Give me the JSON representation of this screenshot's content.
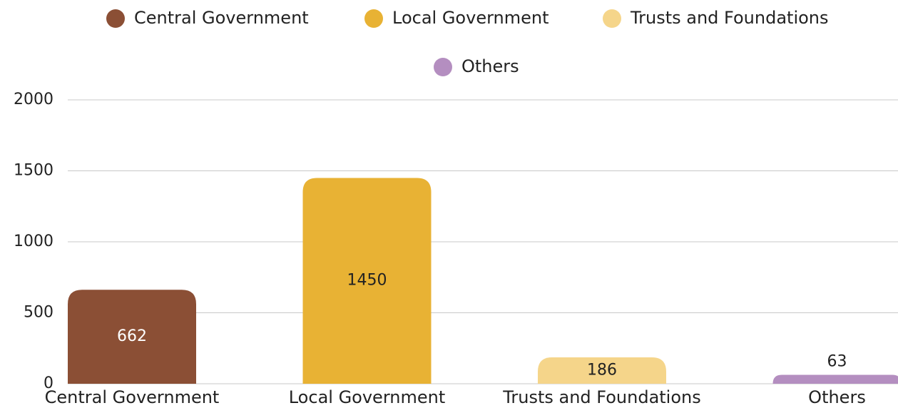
{
  "chart_data": {
    "type": "bar",
    "categories": [
      "Central Government",
      "Local Government",
      "Trusts and Foundations",
      "Others"
    ],
    "values": [
      662,
      1450,
      186,
      63
    ],
    "colors": [
      "#8b4f35",
      "#e8b234",
      "#f5d58a",
      "#b48ec0"
    ],
    "ylim": [
      0,
      2000
    ],
    "yticks": [
      0,
      500,
      1000,
      1500,
      2000
    ],
    "grid": true,
    "legend": "top"
  }
}
